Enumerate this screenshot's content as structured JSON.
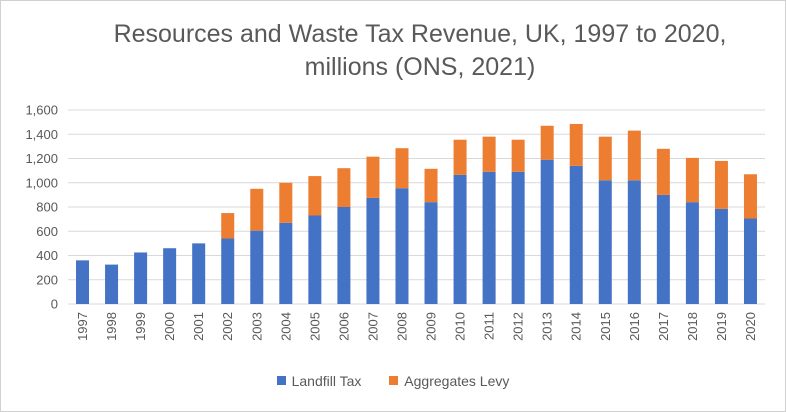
{
  "chart_data": {
    "type": "bar",
    "stacked": true,
    "title_line1": "Resources and Waste Tax Revenue, UK, 1997 to 2020,",
    "title_line2": "millions (ONS, 2021)",
    "categories": [
      "1997",
      "1998",
      "1999",
      "2000",
      "2001",
      "2002",
      "2003",
      "2004",
      "2005",
      "2006",
      "2007",
      "2008",
      "2009",
      "2010",
      "2011",
      "2012",
      "2013",
      "2014",
      "2015",
      "2016",
      "2017",
      "2018",
      "2019",
      "2020"
    ],
    "series": [
      {
        "name": "Landfill Tax",
        "color": "#4472c4",
        "values": [
          360,
          325,
          425,
          460,
          500,
          540,
          605,
          670,
          730,
          800,
          875,
          955,
          840,
          1065,
          1090,
          1090,
          1190,
          1140,
          1020,
          1020,
          900,
          840,
          785,
          705
        ]
      },
      {
        "name": "Aggregates Levy",
        "color": "#ed7d31",
        "values": [
          0,
          0,
          0,
          0,
          0,
          210,
          345,
          330,
          325,
          320,
          340,
          330,
          275,
          290,
          290,
          265,
          280,
          345,
          360,
          410,
          380,
          365,
          395,
          365
        ]
      }
    ],
    "ylim": [
      0,
      1600
    ],
    "yticks": [
      "0",
      "200",
      "400",
      "600",
      "800",
      "1,000",
      "1,200",
      "1,400",
      "1,600"
    ],
    "grid": true,
    "legend_position": "bottom"
  }
}
